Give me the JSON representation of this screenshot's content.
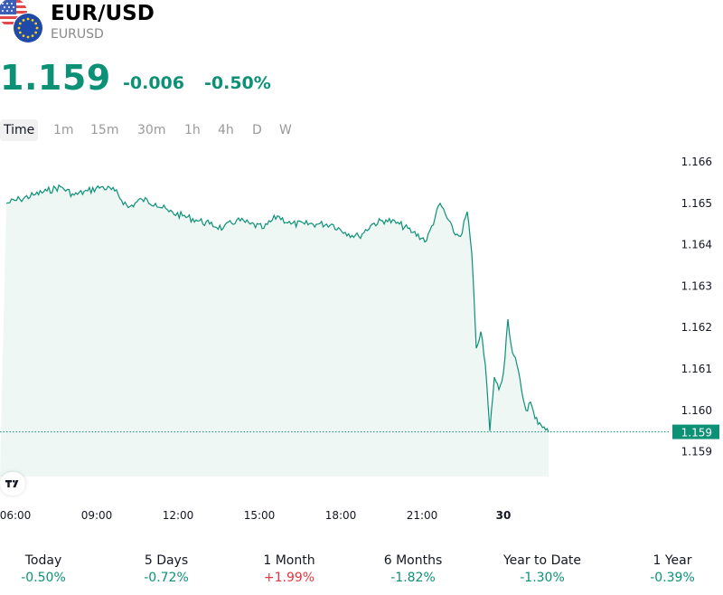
{
  "header": {
    "title": "EUR/USD",
    "symbol": "EURUSD",
    "price": "1.159",
    "change_abs": "-0.006",
    "change_pct": "-0.50%"
  },
  "tabs": [
    {
      "label": "Time",
      "active": true
    },
    {
      "label": "1m",
      "active": false
    },
    {
      "label": "15m",
      "active": false
    },
    {
      "label": "30m",
      "active": false
    },
    {
      "label": "1h",
      "active": false
    },
    {
      "label": "4h",
      "active": false
    },
    {
      "label": "D",
      "active": false
    },
    {
      "label": "W",
      "active": false
    }
  ],
  "chart_data": {
    "type": "area",
    "x_tick_labels": [
      "06:00",
      "09:00",
      "12:00",
      "15:00",
      "18:00",
      "21:00",
      "30"
    ],
    "y_tick_labels": [
      "1.166",
      "1.165",
      "1.164",
      "1.163",
      "1.162",
      "1.161",
      "1.160",
      "1.159"
    ],
    "ylim": [
      1.1584,
      1.1662
    ],
    "last_price_label": "1.159",
    "last_price": 1.15948,
    "series": [
      {
        "x": [
          "05:40",
          "06:10",
          "06:40",
          "07:10",
          "07:40",
          "08:10",
          "08:40",
          "09:10",
          "09:40",
          "10:10",
          "10:40",
          "11:10",
          "11:40",
          "12:10",
          "12:40",
          "13:10",
          "13:40",
          "14:10",
          "14:40",
          "15:10",
          "15:40",
          "16:10",
          "16:40",
          "17:10",
          "17:40",
          "18:10",
          "18:40",
          "19:10",
          "19:40",
          "20:10",
          "20:40",
          "21:10",
          "21:40",
          "22:10",
          "22:25",
          "22:40",
          "22:50",
          "23:00",
          "23:10",
          "23:20",
          "23:30",
          "23:40",
          "23:50",
          "00:00",
          "00:10",
          "00:20",
          "00:30",
          "00:40",
          "00:50",
          "01:00",
          "01:10",
          "01:20",
          "01:30",
          "01:40"
        ],
        "values": [
          1.165,
          1.1651,
          1.1652,
          1.1653,
          1.1654,
          1.1652,
          1.1653,
          1.1654,
          1.1653,
          1.1649,
          1.1651,
          1.165,
          1.1648,
          1.1647,
          1.1646,
          1.1645,
          1.1644,
          1.1646,
          1.1645,
          1.1644,
          1.1647,
          1.1645,
          1.1645,
          1.1645,
          1.1645,
          1.1643,
          1.1642,
          1.1645,
          1.1646,
          1.1645,
          1.1643,
          1.1641,
          1.165,
          1.1643,
          1.1642,
          1.1648,
          1.1638,
          1.1615,
          1.1619,
          1.1611,
          1.1595,
          1.1608,
          1.1605,
          1.1609,
          1.1622,
          1.1614,
          1.1611,
          1.1605,
          1.16,
          1.1602,
          1.1598,
          1.1597,
          1.1596,
          1.15948
        ]
      }
    ]
  },
  "performance": [
    {
      "label": "Today",
      "value": "-0.50%",
      "dir": "neg"
    },
    {
      "label": "5 Days",
      "value": "-0.72%",
      "dir": "neg"
    },
    {
      "label": "1 Month",
      "value": "+1.99%",
      "dir": "pos"
    },
    {
      "label": "6 Months",
      "value": "-1.82%",
      "dir": "neg"
    },
    {
      "label": "Year to Date",
      "value": "-1.30%",
      "dir": "neg"
    },
    {
      "label": "1 Year",
      "value": "-0.39%",
      "dir": "neg"
    }
  ],
  "colors": {
    "accent": "#0d9176",
    "negative_text": "#0d9176",
    "positive_text": "#e5333f",
    "area_fill": "#eef7f4"
  },
  "icons": {
    "flags": "us-flag-and-eu-flag-icon",
    "logo": "tradingview-logo-icon"
  }
}
